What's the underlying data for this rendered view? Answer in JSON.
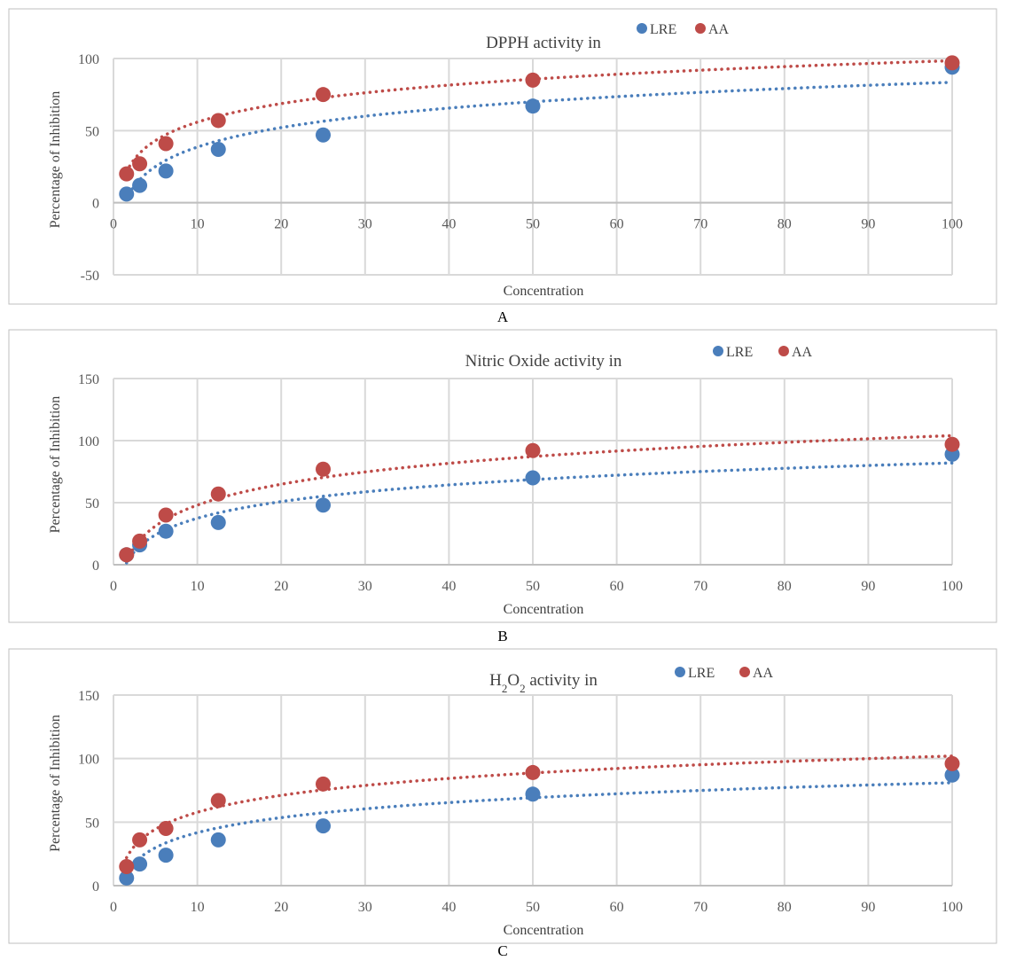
{
  "colors": {
    "LRE": "#4a7ebb",
    "AA": "#be4b48",
    "grid": "#d9d9d9",
    "axis": "#bfbfbf",
    "frame": "#bfbfbf"
  },
  "chart_data": [
    {
      "type": "scatter",
      "title": "DPPH activity in",
      "xlabel": "Concentration",
      "ylabel": "Percentage of Inhibition",
      "xlim": [
        0,
        100
      ],
      "ylim": [
        -50,
        100
      ],
      "xticks": [
        "0",
        "10",
        "20",
        "30",
        "40",
        "50",
        "60",
        "70",
        "80",
        "90",
        "100"
      ],
      "yticks": [
        "-50",
        "0",
        "50",
        "100"
      ],
      "legend_position": "top-right",
      "caption": "A",
      "x": [
        1.56,
        3.125,
        6.25,
        12.5,
        25,
        50,
        100
      ],
      "series": [
        {
          "name": "LRE",
          "values": [
            6,
            12,
            22,
            37,
            47,
            67,
            94
          ],
          "trend": "logarithmic",
          "trend_range": [
            2.34,
            83.5
          ]
        },
        {
          "name": "AA",
          "values": [
            20,
            27,
            41,
            57,
            75,
            85,
            97
          ],
          "trend": "logarithmic",
          "trend_range": [
            21.5,
            98.5
          ]
        }
      ]
    },
    {
      "type": "scatter",
      "title": "Nitric Oxide activity in",
      "xlabel": "Concentration",
      "ylabel": "Percentage of Inhibition",
      "xlim": [
        0,
        100
      ],
      "ylim": [
        0,
        150
      ],
      "xticks": [
        "0",
        "10",
        "20",
        "30",
        "40",
        "50",
        "60",
        "70",
        "80",
        "90",
        "100"
      ],
      "yticks": [
        "0",
        "50",
        "100",
        "150"
      ],
      "legend_position": "top-right",
      "caption": "B",
      "x": [
        1.56,
        3.125,
        6.25,
        12.5,
        25,
        50,
        100
      ],
      "series": [
        {
          "name": "LRE",
          "values": [
            8,
            16,
            27,
            34,
            48,
            70,
            89
          ],
          "trend": "logarithmic",
          "trend_range": [
            1.45,
            82
          ]
        },
        {
          "name": "AA",
          "values": [
            8,
            19,
            40,
            57,
            77,
            92,
            97
          ],
          "trend": "logarithmic",
          "trend_range": [
            2.82,
            104
          ]
        }
      ]
    },
    {
      "type": "scatter",
      "title_parts": [
        "H",
        "2",
        "O",
        "2",
        " activity in"
      ],
      "xlabel": "Concentration",
      "ylabel": "Percentage of Inhibition",
      "xlim": [
        0,
        100
      ],
      "ylim": [
        0,
        150
      ],
      "xticks": [
        "0",
        "10",
        "20",
        "30",
        "40",
        "50",
        "60",
        "70",
        "80",
        "90",
        "100"
      ],
      "yticks": [
        "0",
        "50",
        "100",
        "150"
      ],
      "legend_position": "top-right",
      "caption": "C",
      "x": [
        1.56,
        3.125,
        6.25,
        12.5,
        25,
        50,
        100
      ],
      "series": [
        {
          "name": "LRE",
          "values": [
            6,
            17,
            24,
            36,
            47,
            72,
            87
          ],
          "trend": "logarithmic",
          "trend_range": [
            10,
            81
          ]
        },
        {
          "name": "AA",
          "values": [
            15,
            36,
            45,
            67,
            80,
            89,
            96
          ],
          "trend": "logarithmic",
          "trend_range": [
            22,
            102
          ]
        }
      ]
    }
  ]
}
